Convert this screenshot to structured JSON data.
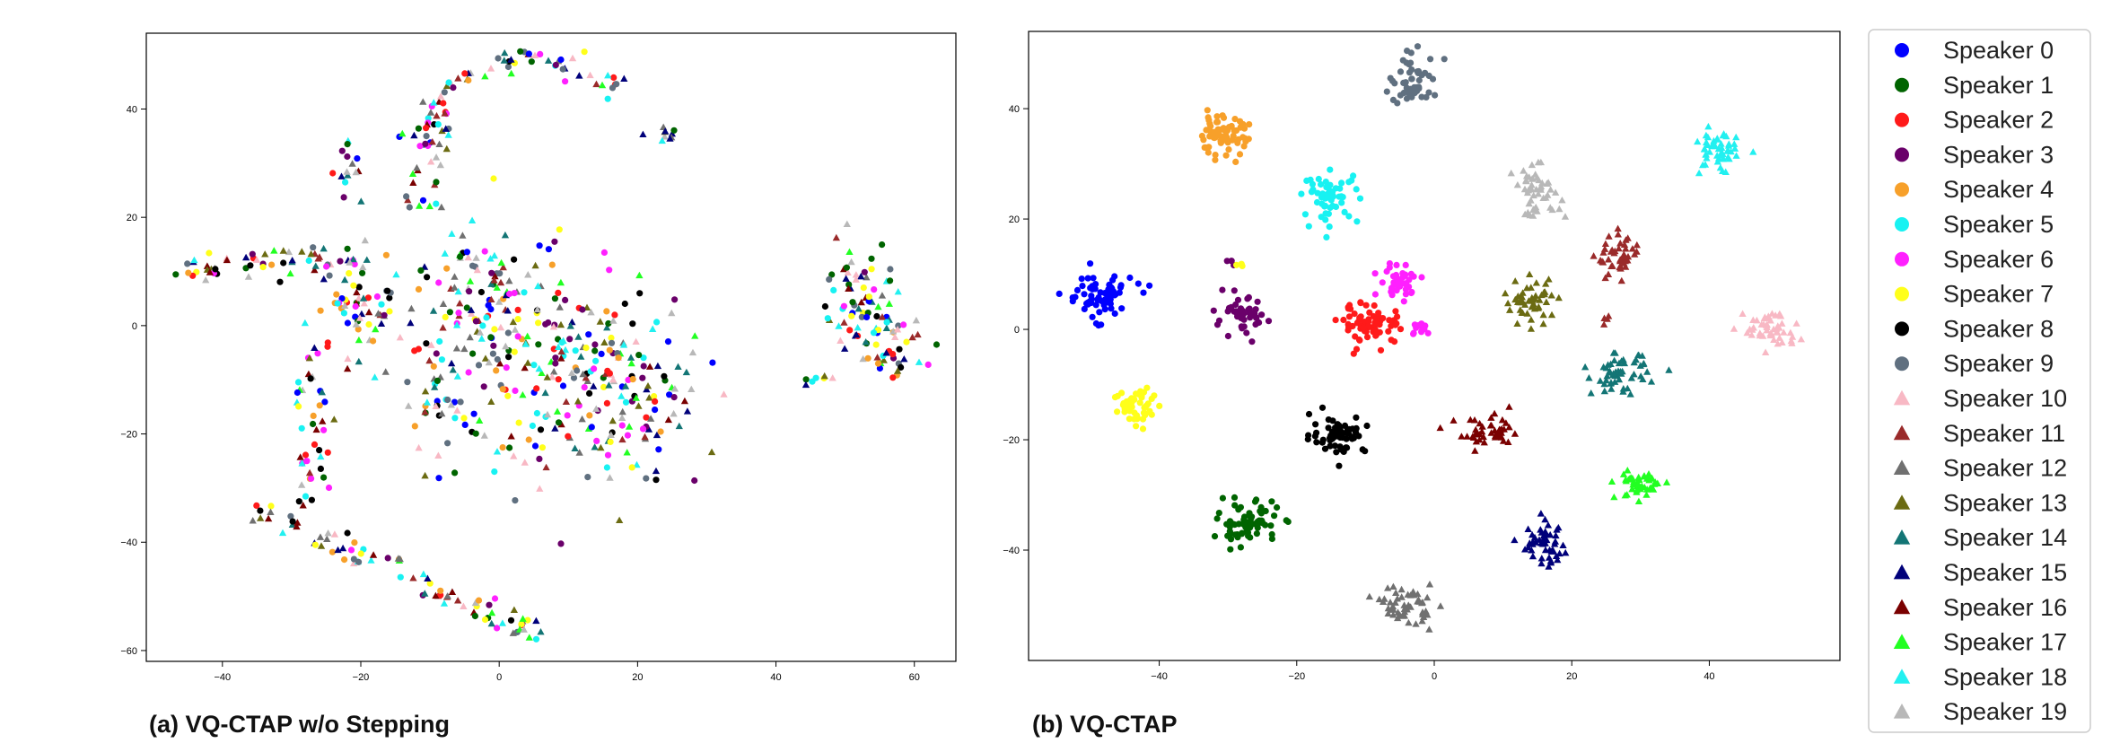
{
  "panels": [
    {
      "caption": "(a) VQ-CTAP w/o Stepping"
    },
    {
      "caption": "(b) VQ-CTAP"
    }
  ],
  "speakers": [
    {
      "name": "Speaker 0",
      "marker": "circle",
      "color": "#0000ff"
    },
    {
      "name": "Speaker 1",
      "marker": "circle",
      "color": "#006400"
    },
    {
      "name": "Speaker 2",
      "marker": "circle",
      "color": "#ff1a1a"
    },
    {
      "name": "Speaker 3",
      "marker": "circle",
      "color": "#6a006a"
    },
    {
      "name": "Speaker 4",
      "marker": "circle",
      "color": "#f7a02a"
    },
    {
      "name": "Speaker 5",
      "marker": "circle",
      "color": "#18f2f2"
    },
    {
      "name": "Speaker 6",
      "marker": "circle",
      "color": "#ff20ff"
    },
    {
      "name": "Speaker 7",
      "marker": "circle",
      "color": "#ffff1a"
    },
    {
      "name": "Speaker 8",
      "marker": "circle",
      "color": "#000000"
    },
    {
      "name": "Speaker 9",
      "marker": "circle",
      "color": "#607080"
    },
    {
      "name": "Speaker 10",
      "marker": "triangle",
      "color": "#f8b8c4"
    },
    {
      "name": "Speaker 11",
      "marker": "triangle",
      "color": "#9a2a2a"
    },
    {
      "name": "Speaker 12",
      "marker": "triangle",
      "color": "#707070"
    },
    {
      "name": "Speaker 13",
      "marker": "triangle",
      "color": "#6b6b12"
    },
    {
      "name": "Speaker 14",
      "marker": "triangle",
      "color": "#137575"
    },
    {
      "name": "Speaker 15",
      "marker": "triangle",
      "color": "#00007a"
    },
    {
      "name": "Speaker 16",
      "marker": "triangle",
      "color": "#7a0000"
    },
    {
      "name": "Speaker 17",
      "marker": "triangle",
      "color": "#22ff22"
    },
    {
      "name": "Speaker 18",
      "marker": "triangle",
      "color": "#22f0f0"
    },
    {
      "name": "Speaker 19",
      "marker": "triangle",
      "color": "#b8b8b8"
    }
  ],
  "chart_data": [
    {
      "type": "scatter",
      "caption": "(a) VQ-CTAP w/o Stepping",
      "xlim": [
        -51,
        66
      ],
      "ylim": [
        -62,
        54
      ],
      "xticks": [
        -40,
        -20,
        0,
        20,
        40,
        60
      ],
      "yticks": [
        -60,
        -40,
        -20,
        0,
        20,
        40
      ],
      "grid": false,
      "note": "all 20 speakers intermixed along curved structures; approximate regions listed",
      "mixed_regions": [
        {
          "kind": "curve",
          "path": [
            [
              -45,
              10
            ],
            [
              -38,
              12
            ],
            [
              -30,
              12
            ],
            [
              -20,
              11
            ]
          ],
          "spread": 1.5,
          "n": 55
        },
        {
          "kind": "curve",
          "path": [
            [
              -12,
              35
            ],
            [
              -6,
              44
            ],
            [
              0,
              49
            ],
            [
              6,
              50
            ],
            [
              12,
              47
            ],
            [
              17,
              43
            ]
          ],
          "spread": 1.2,
          "n": 60
        },
        {
          "kind": "curve",
          "path": [
            [
              -14,
              -46
            ],
            [
              -8,
              -50
            ],
            [
              0,
              -54
            ],
            [
              7,
              -56
            ]
          ],
          "spread": 1.0,
          "n": 45
        },
        {
          "kind": "curve",
          "path": [
            [
              -35,
              -33
            ],
            [
              -30,
              -37
            ],
            [
              -25,
              -40
            ],
            [
              -20,
              -43
            ],
            [
              -14,
              -46
            ]
          ],
          "spread": 1.2,
          "n": 40
        },
        {
          "kind": "curve",
          "path": [
            [
              -27,
              -5
            ],
            [
              -28,
              -15
            ],
            [
              -27,
              -25
            ],
            [
              -28,
              -33
            ]
          ],
          "spread": 1.5,
          "n": 45
        },
        {
          "kind": "curve",
          "path": [
            [
              -8,
              42
            ],
            [
              -10,
              32
            ],
            [
              -12,
              22
            ]
          ],
          "spread": 1.5,
          "n": 40
        },
        {
          "kind": "blob",
          "center": [
            -22,
            30
          ],
          "spread": [
            1.0,
            3.0
          ],
          "n": 14
        },
        {
          "kind": "blob",
          "center": [
            24,
            36
          ],
          "spread": [
            0.8,
            0.8
          ],
          "n": 10
        },
        {
          "kind": "blob",
          "center": [
            -21,
            4
          ],
          "spread": [
            4,
            6
          ],
          "n": 70
        },
        {
          "kind": "blob",
          "center": [
            -2,
            3
          ],
          "spread": [
            6,
            8
          ],
          "n": 130
        },
        {
          "kind": "blob",
          "center": [
            10,
            -8
          ],
          "spread": [
            7,
            10
          ],
          "n": 150
        },
        {
          "kind": "blob",
          "center": [
            20,
            -15
          ],
          "spread": [
            5,
            8
          ],
          "n": 90
        },
        {
          "kind": "blob",
          "center": [
            -8,
            -15
          ],
          "spread": [
            3,
            6
          ],
          "n": 40
        },
        {
          "kind": "blob",
          "center": [
            52,
            5
          ],
          "spread": [
            3,
            5
          ],
          "n": 60
        },
        {
          "kind": "blob",
          "center": [
            57,
            -3
          ],
          "spread": [
            3,
            4
          ],
          "n": 45
        },
        {
          "kind": "curve",
          "path": [
            [
              44,
              -11
            ],
            [
              47,
              -9
            ]
          ],
          "spread": 0.4,
          "n": 6
        }
      ]
    },
    {
      "type": "scatter",
      "caption": "(b) VQ-CTAP",
      "xlim": [
        -59,
        59
      ],
      "ylim": [
        -60,
        54
      ],
      "xticks": [
        -40,
        -20,
        0,
        20,
        40
      ],
      "yticks": [
        -40,
        -20,
        0,
        20,
        40
      ],
      "grid": false,
      "clusters": [
        {
          "speaker": 0,
          "center": [
            -49,
            6
          ],
          "spread": [
            2.6,
            2.0
          ],
          "n": 70
        },
        {
          "speaker": 1,
          "center": [
            -27,
            -35
          ],
          "spread": [
            2.2,
            2.0
          ],
          "n": 70
        },
        {
          "speaker": 2,
          "center": [
            -9,
            1
          ],
          "spread": [
            2.3,
            1.8
          ],
          "n": 70
        },
        {
          "speaker": 3,
          "center": [
            -28,
            2
          ],
          "spread": [
            1.9,
            1.8
          ],
          "n": 45
        },
        {
          "speaker": 3,
          "center": [
            -30,
            12
          ],
          "spread": [
            0.4,
            0.3
          ],
          "n": 4
        },
        {
          "speaker": 4,
          "center": [
            -31,
            35
          ],
          "spread": [
            2.0,
            1.8
          ],
          "n": 70
        },
        {
          "speaker": 5,
          "center": [
            -15,
            24
          ],
          "spread": [
            2.0,
            2.2
          ],
          "n": 55
        },
        {
          "speaker": 6,
          "center": [
            -5,
            9
          ],
          "spread": [
            1.5,
            1.5
          ],
          "n": 40
        },
        {
          "speaker": 6,
          "center": [
            -2,
            0
          ],
          "spread": [
            1.0,
            0.8
          ],
          "n": 12
        },
        {
          "speaker": 7,
          "center": [
            -43,
            -14
          ],
          "spread": [
            1.8,
            2.0
          ],
          "n": 50
        },
        {
          "speaker": 7,
          "center": [
            -28,
            12
          ],
          "spread": [
            0.3,
            0.3
          ],
          "n": 3
        },
        {
          "speaker": 8,
          "center": [
            -14,
            -19
          ],
          "spread": [
            2.0,
            1.7
          ],
          "n": 60
        },
        {
          "speaker": 9,
          "center": [
            -3,
            45
          ],
          "spread": [
            1.8,
            2.3
          ],
          "n": 55
        },
        {
          "speaker": 10,
          "center": [
            49,
            0
          ],
          "spread": [
            2.0,
            1.8
          ],
          "n": 50
        },
        {
          "speaker": 11,
          "center": [
            27,
            13
          ],
          "spread": [
            1.6,
            2.0
          ],
          "n": 45
        },
        {
          "speaker": 11,
          "center": [
            25,
            2
          ],
          "spread": [
            0.4,
            0.4
          ],
          "n": 4
        },
        {
          "speaker": 12,
          "center": [
            -4,
            -50
          ],
          "spread": [
            1.8,
            1.8
          ],
          "n": 55
        },
        {
          "speaker": 13,
          "center": [
            14,
            5
          ],
          "spread": [
            2.0,
            2.0
          ],
          "n": 50
        },
        {
          "speaker": 14,
          "center": [
            27,
            -8
          ],
          "spread": [
            2.0,
            1.8
          ],
          "n": 55
        },
        {
          "speaker": 15,
          "center": [
            16,
            -39
          ],
          "spread": [
            1.7,
            2.0
          ],
          "n": 50
        },
        {
          "speaker": 16,
          "center": [
            8,
            -19
          ],
          "spread": [
            2.4,
            1.5
          ],
          "n": 45
        },
        {
          "speaker": 17,
          "center": [
            30,
            -28
          ],
          "spread": [
            1.8,
            1.4
          ],
          "n": 45
        },
        {
          "speaker": 18,
          "center": [
            41,
            32
          ],
          "spread": [
            1.5,
            2.0
          ],
          "n": 50
        },
        {
          "speaker": 19,
          "center": [
            15,
            25
          ],
          "spread": [
            1.7,
            2.2
          ],
          "n": 50
        }
      ]
    }
  ]
}
